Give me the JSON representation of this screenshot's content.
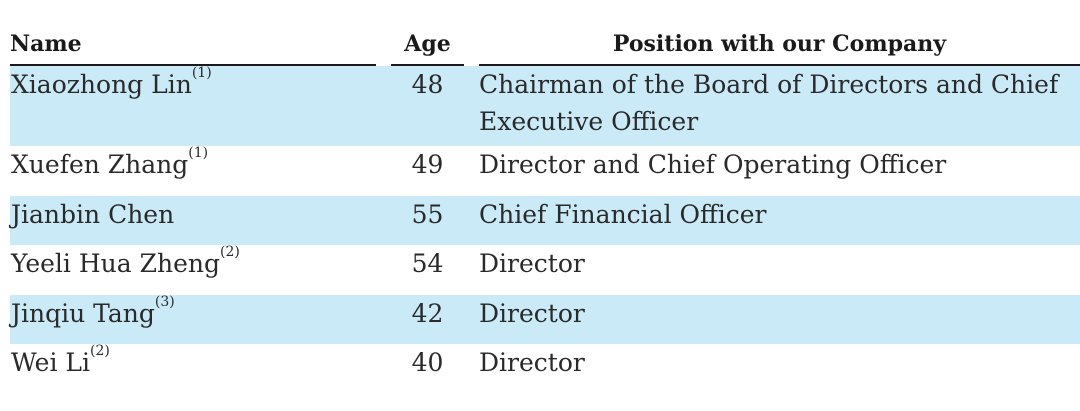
{
  "table": {
    "headers": {
      "name": "Name",
      "age": "Age",
      "position": "Position with our Company"
    },
    "rows": [
      {
        "name": "Xiaozhong Lin",
        "note": "(1)",
        "age": "48",
        "position": "Chairman of the Board of Directors and Chief Executive Officer"
      },
      {
        "name": "Xuefen Zhang",
        "note": "(1)",
        "age": "49",
        "position": "Director and Chief Operating Officer"
      },
      {
        "name": "Jianbin Chen",
        "note": "",
        "age": "55",
        "position": "Chief Financial Officer"
      },
      {
        "name": "Yeeli Hua Zheng",
        "note": "(2)",
        "age": "54",
        "position": "Director"
      },
      {
        "name": "Jinqiu Tang",
        "note": "(3)",
        "age": "42",
        "position": "Director"
      },
      {
        "name": "Wei Li",
        "note": "(2)",
        "age": "40",
        "position": "Director"
      }
    ]
  },
  "colors": {
    "shaded_row": "#cbeaf8",
    "rule": "#1a1a1a"
  }
}
